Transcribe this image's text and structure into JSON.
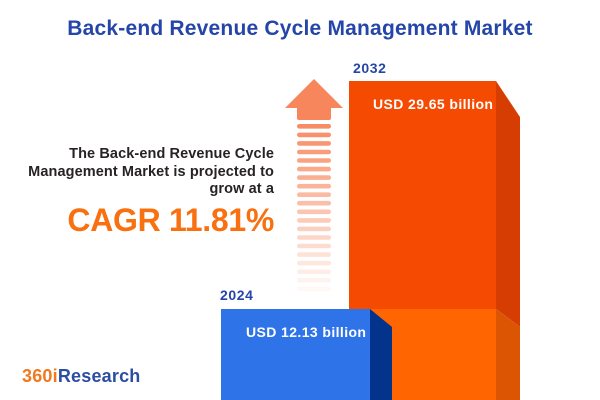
{
  "title": "Back-end Revenue Cycle Management Market",
  "description": {
    "line1": "The Back-end Revenue Cycle",
    "line2": "Management Market is projected to",
    "line3": "grow at a",
    "cagr_label": "CAGR 11.81%"
  },
  "bars": {
    "b2024": {
      "year": "2024",
      "value_label": "USD 12.13 billion"
    },
    "b2032": {
      "year": "2032",
      "value_label": "USD 29.65 billion"
    }
  },
  "logo": {
    "part1": "360i",
    "part2": "Research"
  },
  "colors": {
    "title_blue": "#2546A8",
    "cagr_orange": "#F8700F",
    "body_text": "#272323",
    "bar2032_front_top": "#F54A02",
    "bar2032_front_bottom": "#FF6501",
    "bar2032_side_top": "#D63D03",
    "bar2032_side_bottom": "#DC5502",
    "bar2024_front": "#2E73E8",
    "bar2024_side": "#03338A",
    "arrow": "#F8865C",
    "logo_orange": "#F0791F",
    "logo_blue": "#2B4DA3"
  },
  "chart_data": {
    "type": "bar",
    "title": "Back-end Revenue Cycle Management Market",
    "categories": [
      "2024",
      "2032"
    ],
    "values": [
      12.13,
      29.65
    ],
    "unit": "USD billion",
    "value_labels": [
      "USD 12.13 billion",
      "USD 29.65 billion"
    ],
    "cagr_percent": 11.81,
    "annotation": "The Back-end Revenue Cycle Management Market is projected to grow at a CAGR 11.81%",
    "legend": "none",
    "grid": false,
    "style": "3d-bars-with-growth-arrow"
  }
}
